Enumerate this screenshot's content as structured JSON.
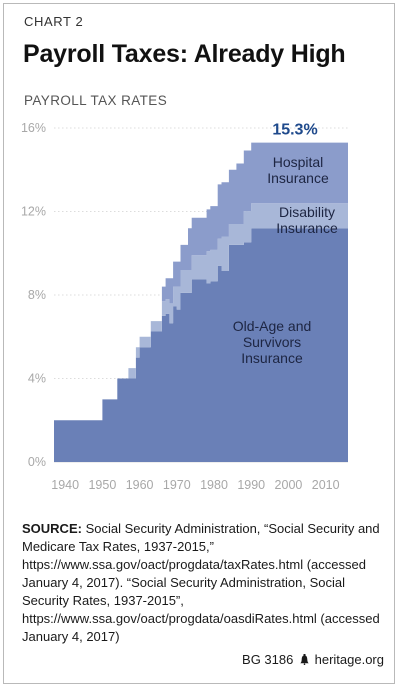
{
  "header": {
    "chart_number": "CHART 2",
    "title": "Payroll Taxes: Already High",
    "subtitle": "PAYROLL TAX RATES"
  },
  "chart_data": {
    "type": "area",
    "stacked": true,
    "x_ticks": [
      "1940",
      "1950",
      "1960",
      "1970",
      "1980",
      "1990",
      "2000",
      "2010"
    ],
    "y_ticks": [
      "0%",
      "4%",
      "8%",
      "12%",
      "16%"
    ],
    "xlim": [
      1937,
      2016
    ],
    "ylim": [
      0,
      16
    ],
    "grid": true,
    "total_annotation": "15.3%",
    "x": [
      1937,
      1950,
      1951,
      1954,
      1955,
      1957,
      1959,
      1960,
      1962,
      1963,
      1966,
      1967,
      1968,
      1969,
      1970,
      1971,
      1973,
      1974,
      1978,
      1979,
      1981,
      1982,
      1984,
      1986,
      1988,
      1990,
      2016
    ],
    "series": [
      {
        "name": "Old-Age and Survivors Insurance",
        "color": "#6a80b7",
        "values": [
          2.0,
          3.0,
          3.0,
          4.0,
          4.0,
          4.0,
          5.0,
          5.5,
          5.5,
          6.25,
          7.0,
          7.1,
          6.65,
          7.45,
          7.3,
          8.1,
          8.1,
          8.75,
          8.55,
          8.66,
          9.4,
          9.15,
          10.4,
          10.4,
          10.52,
          11.2,
          10.6
        ]
      },
      {
        "name": "Disability Insurance",
        "color": "#a8b7d8",
        "values": [
          0,
          0,
          0,
          0,
          0,
          0.5,
          0.5,
          0.5,
          0.5,
          0.5,
          0.7,
          0.7,
          0.95,
          0.95,
          1.1,
          1.1,
          1.1,
          1.15,
          1.55,
          1.5,
          1.3,
          1.65,
          1.0,
          1.0,
          1.5,
          1.2,
          1.8
        ]
      },
      {
        "name": "Hospital Insurance",
        "color": "#8b9ccb",
        "values": [
          0,
          0,
          0,
          0,
          0,
          0,
          0,
          0,
          0,
          0,
          0.7,
          1.0,
          1.2,
          1.2,
          1.2,
          1.2,
          2.0,
          1.8,
          2.0,
          2.1,
          2.6,
          2.6,
          2.6,
          2.9,
          2.9,
          2.9,
          2.9
        ]
      }
    ],
    "area_labels": [
      {
        "series": "Hospital Insurance",
        "lines": [
          "Hospital",
          "Insurance"
        ]
      },
      {
        "series": "Disability Insurance",
        "lines": [
          "Disability",
          "Insurance"
        ]
      },
      {
        "series": "Old-Age and Survivors Insurance",
        "lines": [
          "Old-Age and",
          "Survivors",
          "Insurance"
        ]
      }
    ]
  },
  "source": {
    "label": "SOURCE:",
    "text": " Social Security Administration, “Social Security and Medicare Tax Rates, 1937-2015,” https://www.ssa.gov/oact/progdata/taxRates.html (accessed January 4, 2017). “Social Security Administration, Social Security Rates, 1937-2015”, https://www.ssa.gov/oact/progdata/oasdiRates.html (accessed January 4, 2017)"
  },
  "footer": {
    "report_id": "BG 3186",
    "site": "heritage.org",
    "logo_icon": "liberty-bell-icon"
  }
}
